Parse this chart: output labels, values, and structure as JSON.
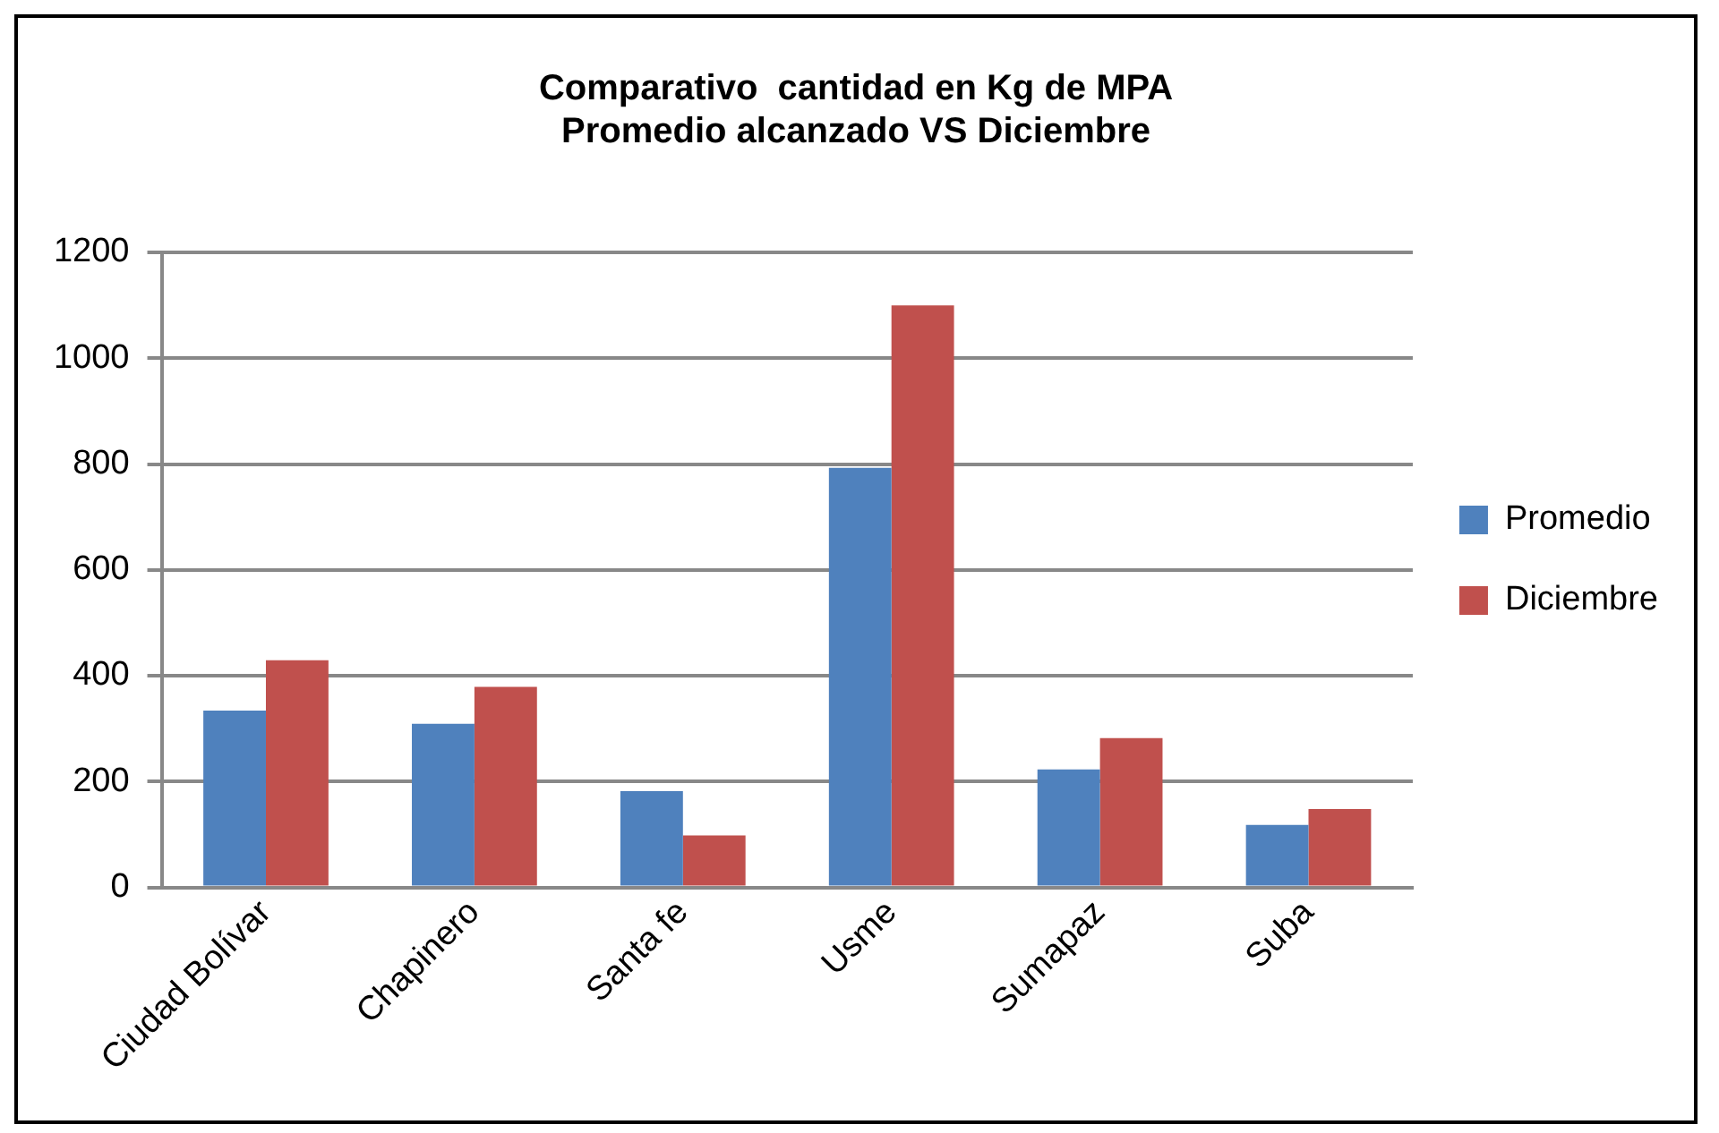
{
  "chart_data": {
    "type": "bar",
    "title": "Comparativo  cantidad en Kg de MPA\nPromedio alcanzado VS Diciembre",
    "categories": [
      "Ciudad Bolívar",
      "Chapinero",
      "Santa fe",
      "Usme",
      "Sumapaz",
      "Suba"
    ],
    "series": [
      {
        "name": "Promedio",
        "color": "#4f81bd",
        "values": [
          334,
          309,
          182,
          793,
          223,
          118
        ]
      },
      {
        "name": "Diciembre",
        "color": "#c0504d",
        "values": [
          429,
          379,
          98,
          1100,
          282,
          148
        ]
      }
    ],
    "ylim": [
      0,
      1200
    ],
    "yticks": [
      0,
      200,
      400,
      600,
      800,
      1000,
      1200
    ],
    "grid": "y",
    "legend": "right"
  }
}
